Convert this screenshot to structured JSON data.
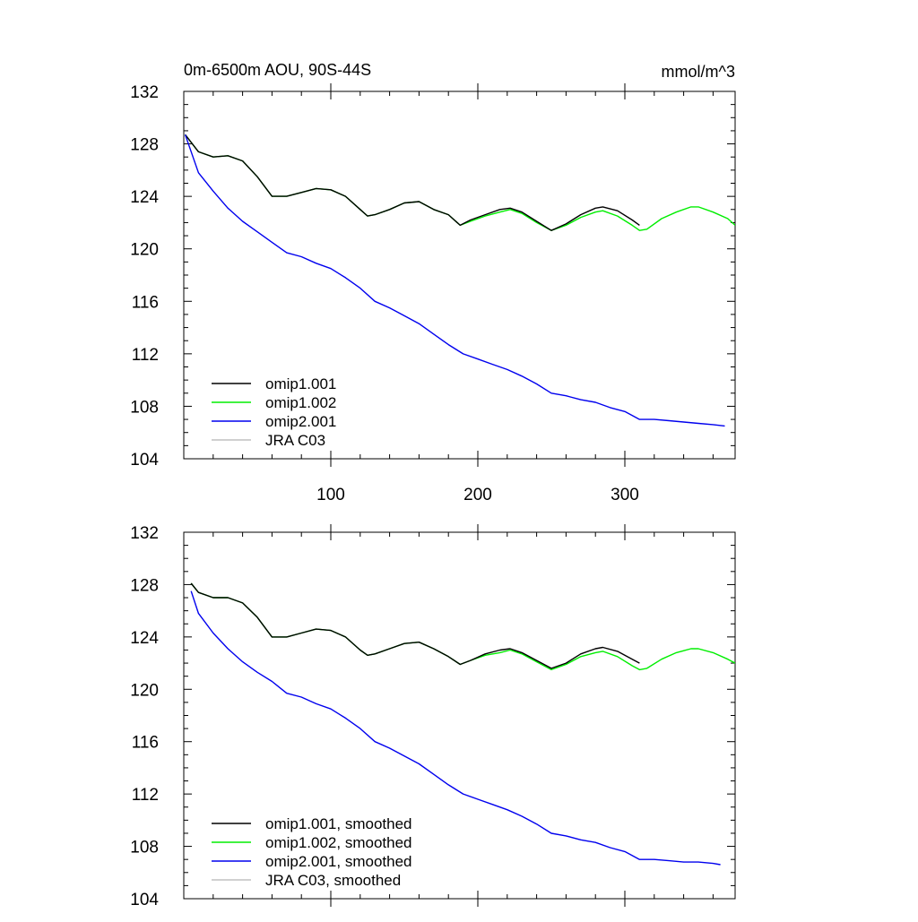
{
  "chart_data": [
    {
      "type": "line",
      "title": "0m-6500m AOU, 90S-44S",
      "units": "mmol/m^3",
      "xlim": [
        0,
        375
      ],
      "ylim": [
        104,
        132
      ],
      "yticks": [
        "104",
        "108",
        "112",
        "116",
        "120",
        "124",
        "128",
        "132"
      ],
      "xticks": [
        "100",
        "200",
        "300"
      ],
      "legend_position": "bottom-left",
      "series": [
        {
          "name": "omip1.001",
          "color": "#000000",
          "x": [
            1,
            10,
            20,
            30,
            40,
            50,
            60,
            70,
            80,
            90,
            100,
            110,
            120,
            125,
            130,
            140,
            150,
            160,
            170,
            180,
            188,
            195,
            205,
            215,
            222,
            230,
            240,
            250,
            260,
            270,
            280,
            285,
            295,
            305,
            310
          ],
          "y": [
            128.7,
            127.4,
            127.0,
            127.1,
            126.7,
            125.5,
            124.0,
            124.0,
            124.3,
            124.6,
            124.5,
            124.0,
            123.0,
            122.5,
            122.6,
            123.0,
            123.5,
            123.6,
            123.0,
            122.6,
            121.8,
            122.2,
            122.6,
            123.0,
            123.1,
            122.8,
            122.1,
            121.4,
            121.9,
            122.6,
            123.1,
            123.2,
            122.9,
            122.2,
            121.8
          ]
        },
        {
          "name": "omip1.002",
          "color": "#00ee00",
          "x": [
            1,
            10,
            20,
            30,
            40,
            50,
            60,
            70,
            80,
            90,
            100,
            110,
            120,
            125,
            130,
            140,
            150,
            160,
            170,
            180,
            188,
            195,
            205,
            215,
            222,
            230,
            240,
            250,
            260,
            270,
            280,
            285,
            295,
            305,
            310,
            315,
            325,
            335,
            345,
            350,
            360,
            370,
            375
          ],
          "y": [
            128.7,
            127.4,
            127.0,
            127.1,
            126.7,
            125.5,
            124.0,
            124.0,
            124.3,
            124.6,
            124.5,
            124.0,
            123.0,
            122.5,
            122.6,
            123.0,
            123.5,
            123.6,
            123.0,
            122.6,
            121.8,
            122.1,
            122.5,
            122.8,
            123.0,
            122.7,
            122.0,
            121.4,
            121.8,
            122.4,
            122.8,
            122.9,
            122.5,
            121.8,
            121.4,
            121.5,
            122.3,
            122.8,
            123.2,
            123.2,
            122.8,
            122.3,
            121.8
          ]
        },
        {
          "name": "omip2.001",
          "color": "#0000ee",
          "x": [
            1,
            10,
            20,
            30,
            40,
            50,
            60,
            70,
            80,
            90,
            100,
            110,
            120,
            130,
            140,
            150,
            160,
            170,
            180,
            190,
            200,
            210,
            220,
            230,
            240,
            250,
            260,
            270,
            280,
            290,
            300,
            310,
            320,
            330,
            340,
            350,
            360,
            368
          ],
          "y": [
            128.7,
            125.8,
            124.4,
            123.1,
            122.1,
            121.3,
            120.5,
            119.7,
            119.4,
            118.9,
            118.5,
            117.8,
            117.0,
            116.0,
            115.5,
            114.9,
            114.3,
            113.5,
            112.7,
            112.0,
            111.6,
            111.2,
            110.8,
            110.3,
            109.7,
            109.0,
            108.8,
            108.5,
            108.3,
            107.9,
            107.6,
            107.0,
            107.0,
            106.9,
            106.8,
            106.7,
            106.6,
            106.5
          ]
        },
        {
          "name": "JRA C03",
          "color": "#c0c0c0",
          "x": [],
          "y": []
        }
      ]
    },
    {
      "type": "line",
      "title": "",
      "xlim": [
        0,
        375
      ],
      "ylim": [
        104,
        132
      ],
      "yticks": [
        "104",
        "108",
        "112",
        "116",
        "120",
        "124",
        "128",
        "132"
      ],
      "legend_position": "bottom-left",
      "series": [
        {
          "name": "omip1.001, smoothed",
          "color": "#000000",
          "x": [
            5,
            10,
            20,
            30,
            40,
            50,
            60,
            70,
            80,
            90,
            100,
            110,
            120,
            125,
            130,
            140,
            150,
            160,
            170,
            180,
            188,
            195,
            205,
            215,
            222,
            230,
            240,
            250,
            260,
            270,
            280,
            285,
            295,
            305,
            310
          ],
          "y": [
            128.1,
            127.4,
            127.0,
            127.0,
            126.6,
            125.5,
            124.0,
            124.0,
            124.3,
            124.6,
            124.5,
            124.0,
            123.0,
            122.6,
            122.7,
            123.1,
            123.5,
            123.6,
            123.1,
            122.5,
            121.9,
            122.2,
            122.7,
            123.0,
            123.1,
            122.8,
            122.2,
            121.6,
            122.0,
            122.7,
            123.1,
            123.2,
            122.9,
            122.3,
            122.0
          ]
        },
        {
          "name": "omip1.002, smoothed",
          "color": "#00ee00",
          "x": [
            5,
            10,
            20,
            30,
            40,
            50,
            60,
            70,
            80,
            90,
            100,
            110,
            120,
            125,
            130,
            140,
            150,
            160,
            170,
            180,
            188,
            195,
            205,
            215,
            222,
            230,
            240,
            250,
            260,
            270,
            280,
            285,
            295,
            305,
            310,
            315,
            325,
            335,
            345,
            350,
            360,
            370,
            375
          ],
          "y": [
            128.1,
            127.4,
            127.0,
            127.0,
            126.6,
            125.5,
            124.0,
            124.0,
            124.3,
            124.6,
            124.5,
            124.0,
            123.0,
            122.6,
            122.7,
            123.1,
            123.5,
            123.6,
            123.1,
            122.5,
            121.9,
            122.2,
            122.6,
            122.8,
            123.0,
            122.7,
            122.1,
            121.5,
            121.9,
            122.5,
            122.8,
            122.9,
            122.5,
            121.8,
            121.5,
            121.6,
            122.3,
            122.8,
            123.1,
            123.1,
            122.8,
            122.3,
            122.0
          ]
        },
        {
          "name": "omip2.001, smoothed",
          "color": "#0000ee",
          "x": [
            5,
            10,
            20,
            30,
            40,
            50,
            60,
            70,
            80,
            90,
            100,
            110,
            120,
            130,
            140,
            150,
            160,
            170,
            180,
            190,
            200,
            210,
            220,
            230,
            240,
            250,
            260,
            270,
            280,
            290,
            300,
            310,
            320,
            330,
            340,
            350,
            360,
            365
          ],
          "y": [
            127.5,
            125.8,
            124.3,
            123.1,
            122.1,
            121.3,
            120.6,
            119.7,
            119.4,
            118.9,
            118.5,
            117.8,
            117.0,
            116.0,
            115.5,
            114.9,
            114.3,
            113.5,
            112.7,
            112.0,
            111.6,
            111.2,
            110.8,
            110.3,
            109.7,
            109.0,
            108.8,
            108.5,
            108.3,
            107.9,
            107.6,
            107.0,
            107.0,
            106.9,
            106.8,
            106.8,
            106.7,
            106.6
          ]
        },
        {
          "name": "JRA C03, smoothed",
          "color": "#c0c0c0",
          "x": [],
          "y": []
        }
      ]
    }
  ]
}
